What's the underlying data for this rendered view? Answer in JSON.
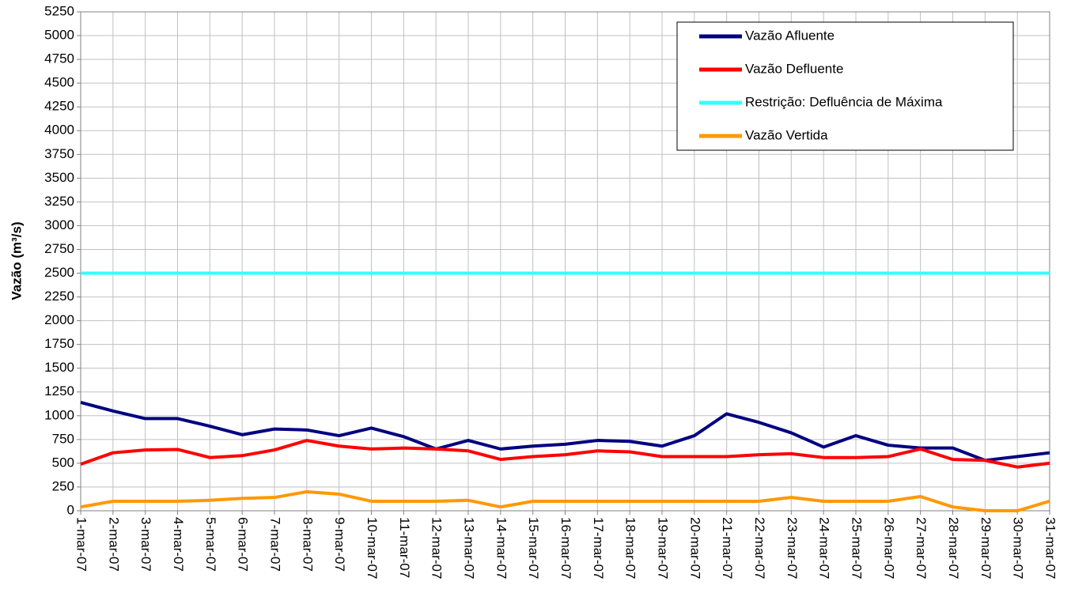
{
  "chart_data": {
    "type": "line",
    "y_label": "Vazão (m³/s)",
    "categories": [
      "1-mar-07",
      "2-mar-07",
      "3-mar-07",
      "4-mar-07",
      "5-mar-07",
      "6-mar-07",
      "7-mar-07",
      "8-mar-07",
      "9-mar-07",
      "10-mar-07",
      "11-mar-07",
      "12-mar-07",
      "13-mar-07",
      "14-mar-07",
      "15-mar-07",
      "16-mar-07",
      "17-mar-07",
      "18-mar-07",
      "19-mar-07",
      "20-mar-07",
      "21-mar-07",
      "22-mar-07",
      "23-mar-07",
      "24-mar-07",
      "25-mar-07",
      "26-mar-07",
      "27-mar-07",
      "28-mar-07",
      "29-mar-07",
      "30-mar-07",
      "31-mar-07"
    ],
    "series": [
      {
        "name": "Vazão Afluente",
        "color": "#000080",
        "values": [
          1140,
          1050,
          970,
          970,
          890,
          800,
          860,
          850,
          790,
          870,
          780,
          650,
          740,
          650,
          680,
          700,
          740,
          730,
          680,
          790,
          1020,
          930,
          820,
          670,
          790,
          690,
          660,
          660,
          530,
          570,
          610
        ]
      },
      {
        "name": "Vazão Defluente",
        "color": "#ff0000",
        "values": [
          490,
          610,
          640,
          645,
          560,
          580,
          640,
          740,
          680,
          650,
          660,
          650,
          630,
          540,
          570,
          590,
          630,
          620,
          570,
          570,
          570,
          590,
          600,
          560,
          560,
          570,
          650,
          540,
          530,
          460,
          500
        ]
      },
      {
        "name": "Restrição: Defluência de Máxima",
        "color": "#33ffff",
        "values": [
          2500,
          2500,
          2500,
          2500,
          2500,
          2500,
          2500,
          2500,
          2500,
          2500,
          2500,
          2500,
          2500,
          2500,
          2500,
          2500,
          2500,
          2500,
          2500,
          2500,
          2500,
          2500,
          2500,
          2500,
          2500,
          2500,
          2500,
          2500,
          2500,
          2500,
          2500
        ]
      },
      {
        "name": "Vazão Vertida",
        "color": "#ff9900",
        "values": [
          40,
          100,
          100,
          100,
          110,
          130,
          140,
          200,
          175,
          100,
          100,
          100,
          110,
          40,
          100,
          100,
          100,
          100,
          100,
          100,
          100,
          100,
          140,
          100,
          100,
          100,
          150,
          40,
          0,
          0,
          100
        ]
      }
    ],
    "ylim": [
      0,
      5250
    ],
    "yticks": [
      0,
      250,
      500,
      750,
      1000,
      1250,
      1500,
      1750,
      2000,
      2250,
      2500,
      2750,
      3000,
      3250,
      3500,
      3750,
      4000,
      4250,
      4500,
      4750,
      5000,
      5250
    ],
    "grid": true,
    "legend": "top-right"
  }
}
